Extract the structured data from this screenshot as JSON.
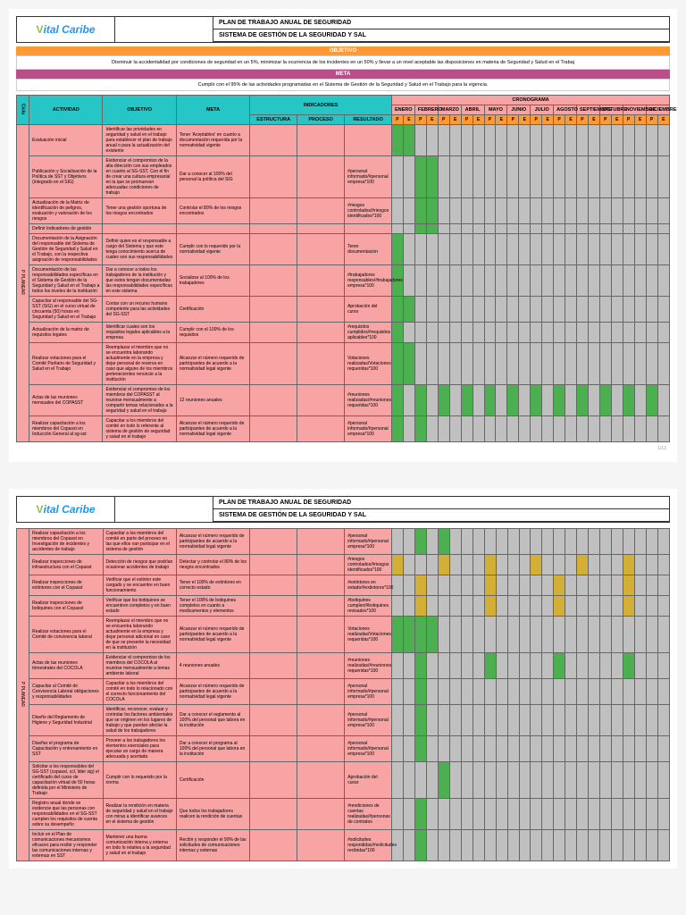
{
  "logo": {
    "v": "V",
    "rest": "ital Caribe"
  },
  "titles": {
    "line1": "PLAN DE TRABAJO ANUAL DE SEGURIDAD",
    "line2": "SISTEMA DE GESTIÓN DE LA SEGURIDAD Y SAL"
  },
  "objetivo": {
    "label": "OBJETIVO",
    "text": "Disminuir la accidentalidad por condiciones de seguridad en un 5%, minimizar la ocurrencia de los incidentes en un 50% y llevar a un nivel aceptable las disposiciones en materia de Seguridad y Salud en el Trabaj"
  },
  "meta": {
    "label": "META",
    "text": "Cumplir con el 95% de las actividades programadas en el Sistema de Gestión de la Seguridad y Salud en el Trabajo para la vigencia."
  },
  "headers": {
    "ciclo": "Ciclo",
    "actividad": "ACTIVIDAD",
    "objetivo": "OBJETIVO",
    "meta": "META",
    "indicadores": "INDICADORES",
    "cronograma": "CRONOGRAMA",
    "estructura": "ESTRUCTURA",
    "proceso": "PROCESO",
    "resultado": "RESULTADO",
    "months": [
      "ENERO",
      "FEBRERO",
      "MARZO",
      "ABRIL",
      "MAYO",
      "JUNIO",
      "JULIO",
      "AGOSTO",
      "SEPTIEMBRE",
      "OCTUBRE",
      "NOVIEMBRE",
      "DICIEMBRE"
    ],
    "pe": [
      "P",
      "E"
    ]
  },
  "page1_rows": [
    {
      "act": "Evaluación inicial",
      "obj": "Identificar las prioridades en seguridad y salud en el trabajo para establecer el plan de trabajo anual o para la actualización del existente",
      "meta": "Tener 'Aceptables' en cuanto a documentación requerida por la normatividad vigente",
      "ind": "",
      "marks": [
        [
          0,
          "g"
        ],
        [
          1,
          "g"
        ]
      ]
    },
    {
      "act": "Publicación y Socialización de la Política de SST y Objetivos (integrado en el SIG)",
      "obj": "Evidenciar el compromiso de la alta dirección con sus empleados en cuanto al SG-SST. Con el fin de crear una cultura empresarial en la que se promuevan adecuadas condiciones de trabajo",
      "meta": "Dar a conocer al 100% del personal la política del SIG",
      "ind": "#personal informado/#personal empresa*100",
      "marks": [
        [
          2,
          "g"
        ],
        [
          3,
          "g"
        ]
      ]
    },
    {
      "act": "Actualización de la Matriz de identificación de peligros, evaluación y valoración de los riesgos",
      "obj": "Tener una gestión oportuna de los riesgos encontrados",
      "meta": "Controlar el 80% de los riesgos encontrados",
      "ind": "#riesgos controlados/#riesgos identificados*100",
      "marks": [
        [
          2,
          "g"
        ],
        [
          3,
          "g"
        ]
      ]
    },
    {
      "act": "Definir Indicadores de gestión",
      "obj": "",
      "meta": "",
      "ind": "",
      "marks": [
        [
          2,
          "g"
        ],
        [
          3,
          "g"
        ]
      ]
    },
    {
      "act": "Documentación de la Asignación del responsable del Sistema de Gestión de Seguridad y Salud en el Trabajo, con la respectiva asignación de responsabilidades",
      "obj": "Definir quien es el responsable a cargo del Sistema y que este tenga conocimiento acerca de cuales son sus responsabilidades",
      "meta": "Cumplir con lo requerido por la normatividad vigente",
      "ind": "Tener documentación",
      "marks": [
        [
          0,
          "g"
        ]
      ]
    },
    {
      "act": "Documentación de las responsabilidades específicas en el Sistema de Gestión de la Seguridad y Salud en el Trabajo a todos los niveles de la institución",
      "obj": "Dar a conocer a todos los trabajadores de la institución y que estos tengan documentadas las responsabilidades específicas en este sistema",
      "meta": "Socializar al 100% de los trabajadores",
      "ind": "#trabajadores responsables/#trabajadores empresa*100",
      "marks": [
        [
          0,
          "g"
        ]
      ]
    },
    {
      "act": "Capacitar al responsable del SG-SST (SIG) en el curso virtual de cincuenta (50) horas en Seguridad y Salud en el Trabajo",
      "obj": "Contar con un recurso humano competente para las actividades del SG-SST",
      "meta": "Certificación",
      "ind": "Aprobación del curso",
      "marks": [
        [
          0,
          "g"
        ],
        [
          1,
          "g"
        ]
      ]
    },
    {
      "act": "Actualización de la matriz de requisitos legales",
      "obj": "Identificar cuales son los requisitos legales aplicables a la empresa",
      "meta": "Cumplir con el 100% de los requisitos",
      "ind": "#requisitos cumplidos/#requisitos aplicables*100",
      "marks": [
        [
          0,
          "g"
        ]
      ]
    },
    {
      "act": "Realizar votaciones para el Comité Paritario de Seguridad y Salud en el Trabajo",
      "obj": "Reemplazar el miembro que no se encuentra laborando actualmente en la empresa y dejar personal de reserva en caso que alguno de los miembros pertenecientes renuncie a la institución",
      "meta": "Alcanzar el número requerido de participantes de acuerdo a la normatividad legal vigente",
      "ind": "Votaciones realizadas/Votaciones requeridas*100",
      "marks": [
        [
          0,
          "g"
        ],
        [
          1,
          "g"
        ]
      ]
    },
    {
      "act": "Actas de las reuniones mensuales del COPASST",
      "obj": "Evidenciar el compromiso de los miembros del COPASST al reunirse mensualmente a compartir temas relacionados a la seguridad y salud en el trabajo",
      "meta": "12 reuniones anuales",
      "ind": "#reuniones realizadas/#reuniones requeridas*100",
      "marks": [
        [
          0,
          "g"
        ],
        [
          2,
          "g"
        ],
        [
          4,
          "g"
        ],
        [
          6,
          "g"
        ],
        [
          8,
          "g"
        ],
        [
          10,
          "g"
        ],
        [
          12,
          "g"
        ],
        [
          14,
          "g"
        ],
        [
          16,
          "g"
        ],
        [
          18,
          "g"
        ],
        [
          20,
          "g"
        ],
        [
          22,
          "g"
        ]
      ]
    },
    {
      "act": "Realizar capacitación a los miembros del Copasst en Inducción General al sg-sst",
      "obj": "Capacitar a los miembros del comité en todo lo referente al sistema de gestión de seguridad y salud en el trabajo",
      "meta": "Alcanzar el número requerido de participantes de acuerdo a la normatividad legal vigente",
      "ind": "#personal informado/#personal empresa*100",
      "marks": [
        [
          0,
          "g"
        ],
        [
          2,
          "g"
        ]
      ]
    }
  ],
  "page2_rows": [
    {
      "act": "Realizar capacitación a los miembros del Copasst en Investigación de incidentes y accidentes de trabajo",
      "obj": "Capacitar a los miembros del comité en parte del proceso en las que ellos van participar en el sistema de gestión",
      "meta": "Alcanzar el número requerido de participantes de acuerdo a la normatividad legal vigente",
      "ind": "#personal informado/#personal empresa*100",
      "marks": [
        [
          2,
          "g"
        ],
        [
          4,
          "g"
        ]
      ]
    },
    {
      "act": "Realizar inspecciones de infraestructura con el Copasst",
      "obj": "Detección de riesgos que podrían ocasionar accidentes de trabajo",
      "meta": "Detectar y controlar el 80% de los riesgos encontrados",
      "ind": "#riesgos controlados/#riesgos identificados*100",
      "marks": [
        [
          0,
          "go"
        ],
        [
          4,
          "go"
        ],
        [
          8,
          "go"
        ],
        [
          12,
          "go"
        ],
        [
          16,
          "go"
        ],
        [
          20,
          "go"
        ]
      ]
    },
    {
      "act": "Realizar inspecciones de extintores con el Copasst",
      "obj": "Verificar que el extintor este cargado y se encuentre en buen funcionamiento",
      "meta": "Tener el 100% de extintores en correcto estado",
      "ind": "#extintores en estado/#extintores*100",
      "marks": [
        [
          2,
          "go"
        ],
        [
          8,
          "go"
        ],
        [
          14,
          "go"
        ],
        [
          20,
          "go"
        ]
      ]
    },
    {
      "act": "Realizar inspecciones de botiquines con el Copasst",
      "obj": "Verificar que los botiquines se encuentren completos y en buen estado",
      "meta": "Tener el 100% de botiquines completos en cuanto a medicamentos y elementos",
      "ind": "#botiquines cumplen/#botiquines revisados*100",
      "marks": [
        [
          2,
          "go"
        ],
        [
          8,
          "go"
        ],
        [
          14,
          "go"
        ],
        [
          20,
          "go"
        ]
      ]
    },
    {
      "act": "Realizar votaciones para el Comité de convivencia laboral",
      "obj": "Reemplazar el miembro que no se encuentra laborando actualmente en la empresa y dejar personal adicional en caso de que se presente la necesidad en la institución",
      "meta": "Alcanzar el número requerido de participantes de acuerdo a la normatividad legal vigente",
      "ind": "Votaciones realizadas/Votaciones requeridas*100",
      "marks": [
        [
          0,
          "g"
        ],
        [
          1,
          "g"
        ],
        [
          2,
          "g"
        ],
        [
          3,
          "g"
        ]
      ]
    },
    {
      "act": "Actas de las reuniones trimestrales del COCOLA",
      "obj": "Evidenciar el compromiso de los miembros del COCOLA al reunirse mensualmente a temas ambiente laboral",
      "meta": "4 reuniones anuales",
      "ind": "#reuniones realizadas/#reuniones requeridas*100",
      "marks": [
        [
          2,
          "g"
        ],
        [
          8,
          "g"
        ],
        [
          14,
          "g"
        ],
        [
          20,
          "g"
        ]
      ]
    },
    {
      "act": "Capacitar al Comité de Convivencia Laboral obligaciones y responsabilidades",
      "obj": "Capacitar a los miembros del comité en todo lo relacionado con el correcto funcionamiento del COCOLA",
      "meta": "Alcanzar el número requerido de participantes de acuerdo a la normatividad legal vigente",
      "ind": "#personal informado/#personal empresa*100",
      "marks": [
        [
          2,
          "g"
        ]
      ]
    },
    {
      "act": "Diseño del Reglamento de Higiene y Seguridad Industrial",
      "obj": "Identificar, reconocer, evaluar y controlar los factores ambientales que se originen en los lugares de trabajo y que puedan afectar la salud de los trabajadores",
      "meta": "Dar a conocer el reglamento al 100% del personal que labora en la institución",
      "ind": "#personal informado/#personal empresa*100",
      "marks": [
        [
          2,
          "g"
        ]
      ]
    },
    {
      "act": "Diseñar el programa de Capacitación y entrenamiento en SST",
      "obj": "Proveer a los trabajadores los elementos esenciales para ejecutar un cargo de manera adecuada y acertada",
      "meta": "Dar a conocer el programa al 100% del personal que labora en la institución",
      "ind": "#personal informado/#personal empresa*100",
      "marks": [
        [
          2,
          "g"
        ]
      ]
    },
    {
      "act": "Solicitar a los responsables del SG-SST (copasst, ccl, lider sig) el certificado del curso de capacitación virtual de 50 horas definida por el Ministerio de Trabajo",
      "obj": "Cumplir con lo requerido por la norma",
      "meta": "Certificación",
      "ind": "Aprobación del curso",
      "marks": [
        [
          4,
          "g"
        ]
      ]
    },
    {
      "act": "Registro anual donde se evidencie que las personas con responsabilidades en el SG-SST cumplen los requisitos de cuenta sobre su desempeño",
      "obj": "Realizar la rendición en materia de seguridad y salud en el trabajo con miras a identificar avances en el sistema de gestión",
      "meta": "Que todos los trabajadores realicen la rendición de cuentas",
      "ind": "#rendiciones de cuentas realizadas/#personas de contratos",
      "marks": [
        [
          2,
          "g"
        ]
      ]
    },
    {
      "act": "Incluir en el Plan de comunicaciones mecanismos eficaces para recibir y responder las comunicaciones internas y externas en SST",
      "obj": "Mantener una buena comunicación interna y externa en todo lo relativa a la seguridad y salud en el trabajo",
      "meta": "Recibir y responder el 90% de las solicitudes de comunicaciones internas y externas",
      "ind": "#solicitudes respondidas/#solicitudes recibidas*100",
      "marks": [
        [
          2,
          "g"
        ]
      ]
    }
  ],
  "pagenum": "1/12",
  "colors": {
    "teal": "#26c6c6",
    "orange": "#ff9933",
    "pink": "#f8a4a4",
    "green": "#4caf50",
    "grey": "#c0c0c0",
    "gold": "#d4af37",
    "purple": "#b94e8a"
  }
}
